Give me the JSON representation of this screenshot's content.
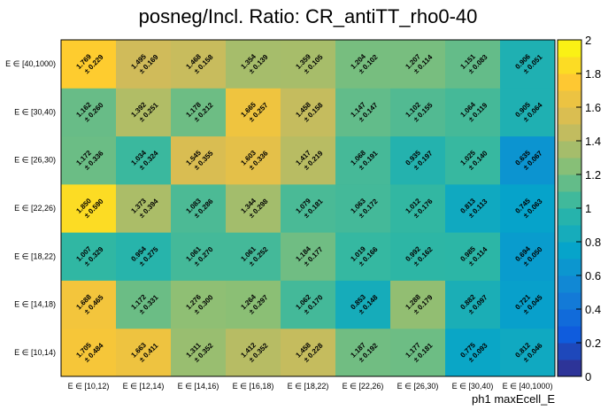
{
  "chart_data": {
    "type": "heatmap",
    "title": "posneg/Incl. Ratio: CR_antiTT_rho0-40",
    "xlabel": "ph1 maxEcell_E",
    "ylabel": "",
    "x_categories": [
      "E ∈ [10,12)",
      "E ∈ [12,14)",
      "E ∈ [14,16)",
      "E ∈ [16,18)",
      "E ∈ [18,22)",
      "E ∈ [22,26)",
      "E ∈ [26,30)",
      "E ∈ [30,40)",
      "E ∈ [40,1000)"
    ],
    "y_categories": [
      "E ∈ [10,14)",
      "E ∈ [14,18)",
      "E ∈ [18,22)",
      "E ∈ [22,26)",
      "E ∈ [26,30)",
      "E ∈ [30,40)",
      "E ∈ [40,1000)"
    ],
    "values": [
      [
        1.705,
        1.663,
        1.311,
        1.412,
        1.458,
        1.187,
        1.177,
        0.775,
        0.812
      ],
      [
        1.688,
        1.172,
        1.276,
        1.264,
        1.062,
        0.853,
        1.288,
        0.882,
        0.721
      ],
      [
        1.007,
        0.954,
        1.061,
        1.061,
        1.184,
        1.019,
        0.992,
        0.985,
        0.694
      ],
      [
        1.85,
        1.373,
        1.083,
        1.344,
        1.079,
        1.063,
        1.012,
        0.813,
        0.745
      ],
      [
        1.172,
        1.034,
        1.545,
        1.603,
        1.417,
        1.068,
        0.935,
        1.025,
        0.635
      ],
      [
        1.162,
        1.392,
        1.178,
        1.665,
        1.458,
        1.147,
        1.102,
        1.064,
        0.905
      ],
      [
        1.769,
        1.495,
        1.468,
        1.354,
        1.359,
        1.204,
        1.207,
        1.151,
        0.906
      ]
    ],
    "errors": [
      [
        "± 0.484",
        "± 0.411",
        "± 0.352",
        "± 0.352",
        "± 0.228",
        "± 0.192",
        "± 0.181",
        "± 0.093",
        "± 0.046"
      ],
      [
        "± 0.465",
        "± 0.331",
        "± 0.300",
        "± 0.297",
        "± 0.170",
        "± 0.148",
        "± 0.179",
        "± 0.097",
        "± 0.045"
      ],
      [
        "± 0.329",
        "± 0.275",
        "± 0.270",
        "± 0.252",
        "± 0.177",
        "± 0.166",
        "± 0.162",
        "± 0.114",
        "± 0.050"
      ],
      [
        "± 0.590",
        "± 0.394",
        "± 0.286",
        "± 0.298",
        "± 0.181",
        "± 0.172",
        "± 0.176",
        "± 0.113",
        "± 0.063"
      ],
      [
        "± 0.336",
        "± 0.324",
        "± 0.355",
        "± 0.336",
        "± 0.219",
        "± 0.191",
        "± 0.197",
        "± 0.140",
        "± 0.067"
      ],
      [
        "± 0.260",
        "± 0.251",
        "± 0.212",
        "± 0.257",
        "± 0.158",
        "± 0.147",
        "± 0.155",
        "± 0.119",
        "± 0.064"
      ],
      [
        "± 0.229",
        "± 0.169",
        "± 0.158",
        "± 0.139",
        "± 0.105",
        "± 0.102",
        "± 0.114",
        "± 0.083",
        "± 0.051"
      ]
    ],
    "value_labels": [
      [
        "1.705",
        "1.663",
        "1.311",
        "1.412",
        "1.458",
        "1.187",
        "1.177",
        "0.775",
        "0.812"
      ],
      [
        "1.688",
        "1.172",
        "1.276",
        "1.264",
        "1.062",
        "0.853",
        "1.288",
        "0.882",
        "0.721"
      ],
      [
        "1.007",
        "0.954",
        "1.061",
        "1.061",
        "1.184",
        "1.019",
        "0.992",
        "0.985",
        "0.694"
      ],
      [
        "1.850",
        "1.373",
        "1.083",
        "1.344",
        "1.079",
        "1.063",
        "1.012",
        "0.813",
        "0.745"
      ],
      [
        "1.172",
        "1.034",
        "1.545",
        "1.603",
        "1.417",
        "1.068",
        "0.935",
        "1.025",
        "0.635"
      ],
      [
        "1.162",
        "1.392",
        "1.178",
        "1.665",
        "1.458",
        "1.147",
        "1.102",
        "1.064",
        "0.905"
      ],
      [
        "1.769",
        "1.495",
        "1.468",
        "1.354",
        "1.359",
        "1.204",
        "1.207",
        "1.151",
        "0.906"
      ]
    ],
    "zlim": [
      0,
      2
    ],
    "z_ticks": [
      "0",
      "0.2",
      "0.4",
      "0.6",
      "0.8",
      "1",
      "1.2",
      "1.4",
      "1.6",
      "1.8",
      "2"
    ],
    "colormap": [
      "#352a87",
      "#0f5cdd",
      "#1481d6",
      "#06a4ca",
      "#2eb7a4",
      "#87bf77",
      "#d1bb59",
      "#fec832",
      "#f9fb0e"
    ],
    "grid": false,
    "legend": "colorbar-right"
  }
}
